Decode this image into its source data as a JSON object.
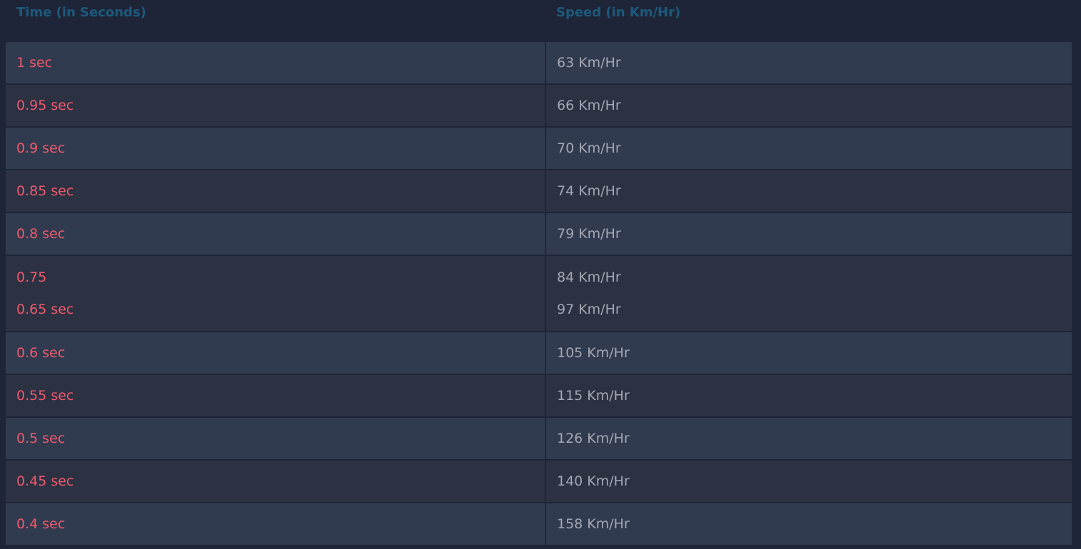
{
  "header": {
    "time": "Time (in Seconds)",
    "speed": "Speed (in Km/Hr)"
  },
  "rows": [
    {
      "time": [
        "1 sec"
      ],
      "speed": [
        "63 Km/Hr"
      ]
    },
    {
      "time": [
        "0.95 sec"
      ],
      "speed": [
        "66 Km/Hr"
      ]
    },
    {
      "time": [
        "0.9 sec"
      ],
      "speed": [
        "70 Km/Hr"
      ]
    },
    {
      "time": [
        "0.85 sec"
      ],
      "speed": [
        "74 Km/Hr"
      ]
    },
    {
      "time": [
        "0.8 sec"
      ],
      "speed": [
        "79 Km/Hr"
      ]
    },
    {
      "time": [
        "0.75",
        "0.65 sec"
      ],
      "speed": [
        "84 Km/Hr",
        "97 Km/Hr"
      ]
    },
    {
      "time": [
        "0.6 sec"
      ],
      "speed": [
        "105 Km/Hr"
      ]
    },
    {
      "time": [
        "0.55 sec"
      ],
      "speed": [
        "115 Km/Hr"
      ]
    },
    {
      "time": [
        "0.5 sec"
      ],
      "speed": [
        "126 Km/Hr"
      ]
    },
    {
      "time": [
        "0.45 sec"
      ],
      "speed": [
        "140 Km/Hr"
      ]
    },
    {
      "time": [
        "0.4 sec"
      ],
      "speed": [
        "158 Km/Hr"
      ]
    }
  ],
  "colors": {
    "time_text": "#f0596d",
    "speed_text": "#a4a7b2",
    "header_text": "#1d5a7c",
    "background": "#1f2538"
  }
}
